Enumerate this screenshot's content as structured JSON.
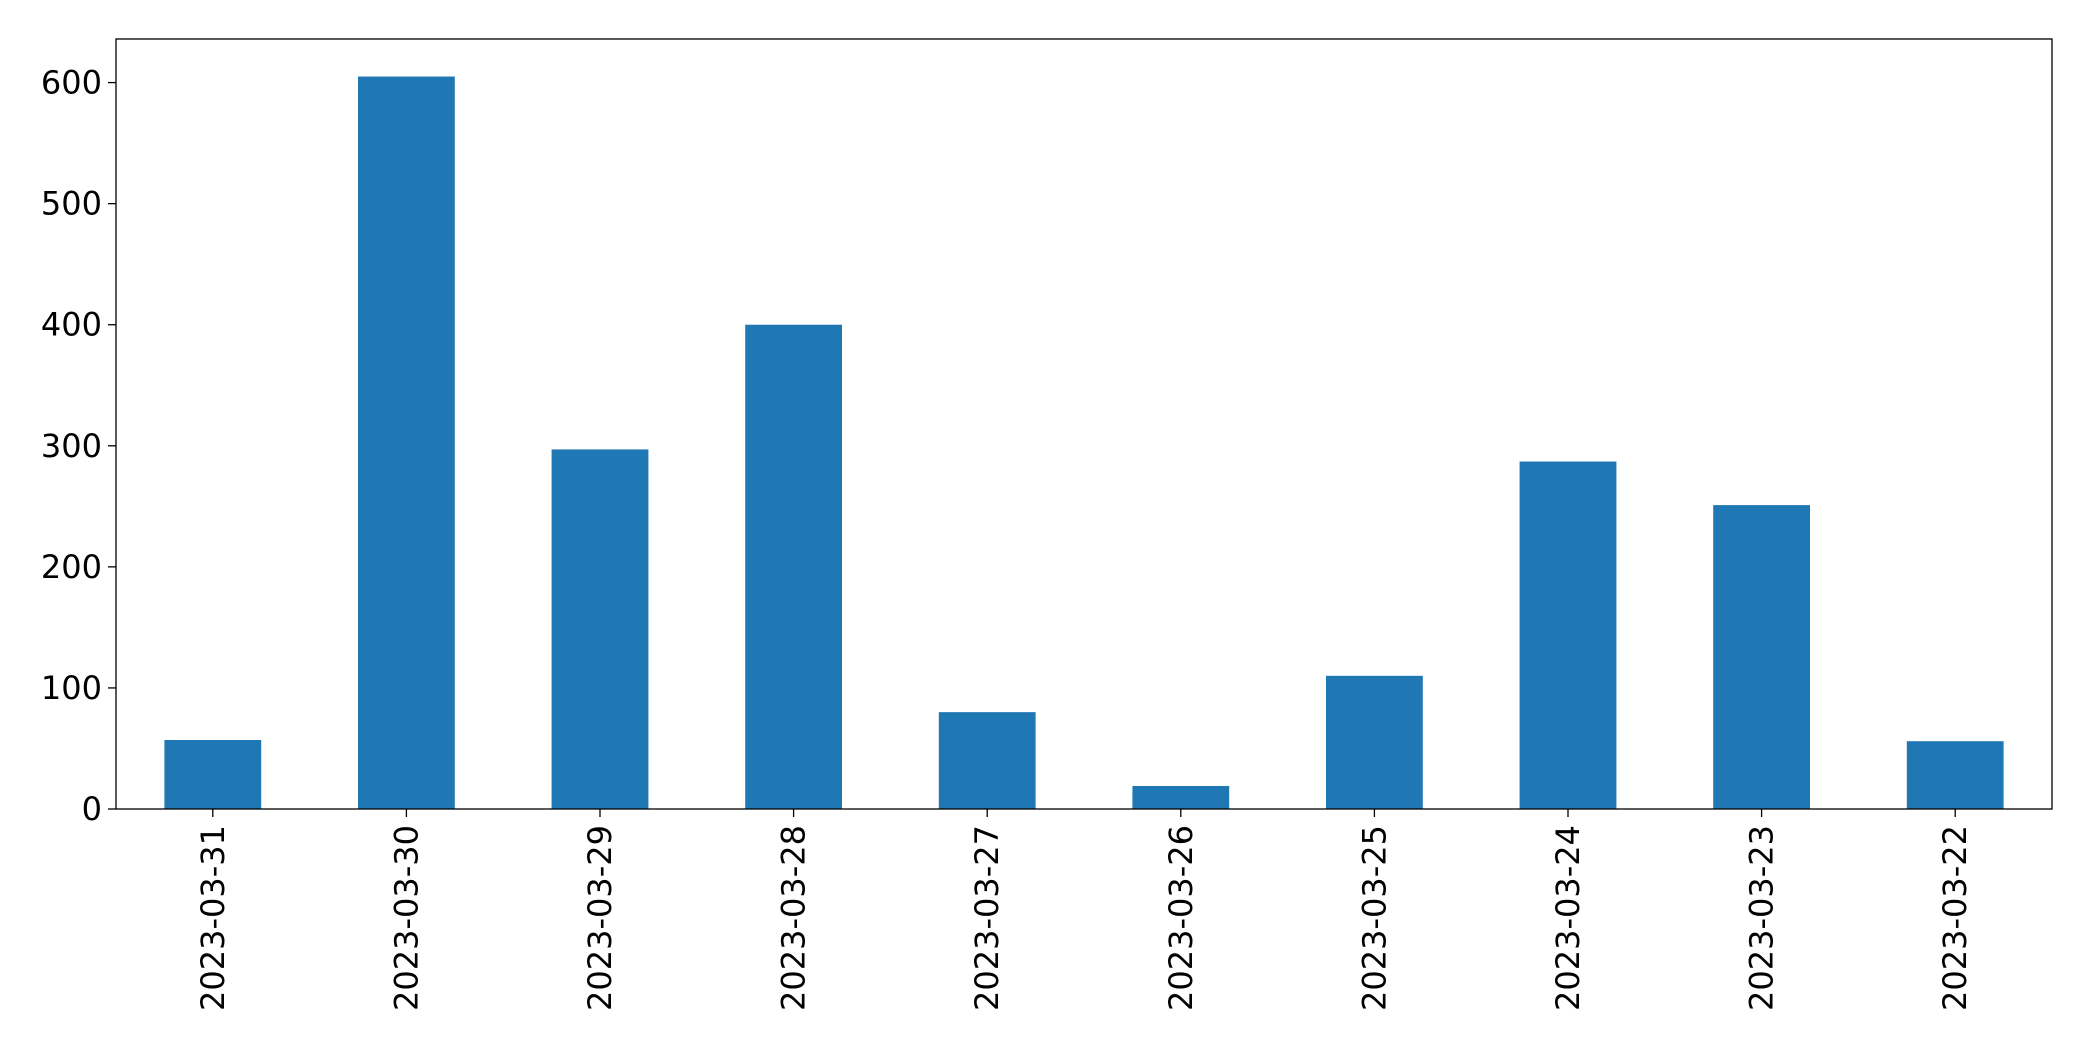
{
  "chart_data": {
    "type": "bar",
    "categories": [
      "2023-03-31",
      "2023-03-30",
      "2023-03-29",
      "2023-03-28",
      "2023-03-27",
      "2023-03-26",
      "2023-03-25",
      "2023-03-24",
      "2023-03-23",
      "2023-03-22"
    ],
    "values": [
      57,
      605,
      297,
      400,
      80,
      19,
      110,
      287,
      251,
      56
    ],
    "color": "#1f77b4",
    "ylim": [
      0,
      636
    ],
    "yticks": [
      0,
      100,
      200,
      300,
      400,
      500,
      600
    ],
    "grid": false
  }
}
